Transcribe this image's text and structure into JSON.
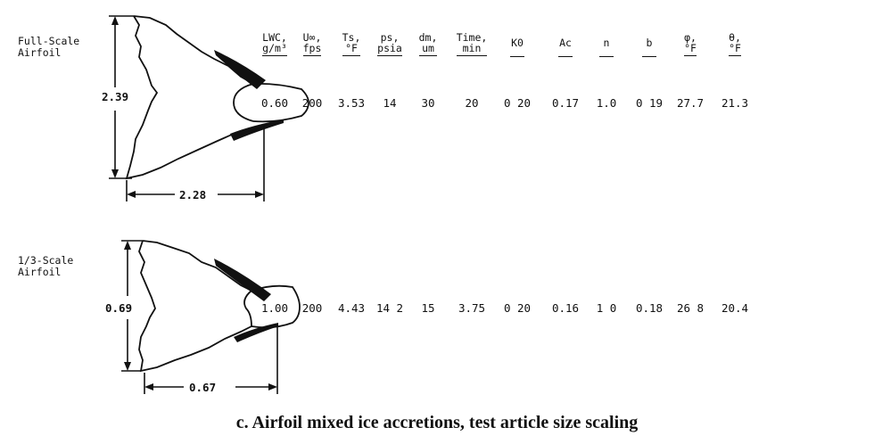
{
  "headers": [
    {
      "key": "lwc",
      "line1": "LWC,",
      "line2": "g/m³"
    },
    {
      "key": "u",
      "line1": "U∞,",
      "line2": "fps"
    },
    {
      "key": "ts",
      "line1": "Ts,",
      "line2": "°F"
    },
    {
      "key": "ps",
      "line1": "ps,",
      "line2": "psia"
    },
    {
      "key": "dm",
      "line1": "dm,",
      "line2": "um"
    },
    {
      "key": "time",
      "line1": "Time,",
      "line2": "min"
    },
    {
      "key": "k0",
      "line1": "K0",
      "line2": ""
    },
    {
      "key": "ac",
      "line1": "Ac",
      "line2": ""
    },
    {
      "key": "n",
      "line1": "n",
      "line2": ""
    },
    {
      "key": "b",
      "line1": "b",
      "line2": ""
    },
    {
      "key": "phi",
      "line1": "φ,",
      "line2": "°F"
    },
    {
      "key": "theta",
      "line1": "θ,",
      "line2": "°F"
    }
  ],
  "rows": [
    {
      "label": "Full-Scale\nAirfoil",
      "height_dim": "2.39",
      "width_dim": "2.28",
      "values": [
        "0.60",
        "200",
        "3.53",
        "14",
        "30",
        "20",
        "0 20",
        "0.17",
        "1.0",
        "0 19",
        "27.7",
        "21.3"
      ]
    },
    {
      "label": "1/3-Scale\nAirfoil",
      "height_dim": "0.69",
      "width_dim": "0.67",
      "values": [
        "1.00",
        "200",
        "4.43",
        "14 2",
        "15",
        "3.75",
        "0 20",
        "0.16",
        "1 0",
        "0.18",
        "26 8",
        "20.4"
      ]
    }
  ],
  "caption": "c. Airfoil mixed ice accretions, test article size scaling"
}
